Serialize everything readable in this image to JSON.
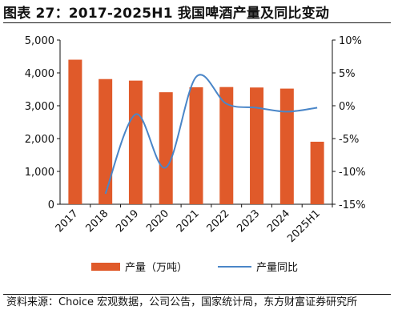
{
  "title": "图表 27：2017-2025H1 我国啤酒产量及同比变动",
  "source": "资料来源：Choice 宏观数据，公司公告，国家统计局，东方财富证券研究所",
  "chart_data": {
    "type": "bar",
    "categories": [
      "2017",
      "2018",
      "2019",
      "2020",
      "2021",
      "2022",
      "2023",
      "2024",
      "2025H1"
    ],
    "series": [
      {
        "name": "产量（万吨）",
        "type": "bar",
        "axis": "left",
        "color": "#e05a2a",
        "values": [
          4402,
          3812,
          3765,
          3411,
          3562,
          3569,
          3555,
          3522,
          1904
        ]
      },
      {
        "name": "产量同比",
        "type": "line",
        "axis": "right",
        "color": "#4a86c8",
        "values": [
          null,
          -13.4,
          -1.3,
          -9.4,
          4.4,
          0.3,
          -0.3,
          -0.9,
          -0.3
        ]
      }
    ],
    "y_left": {
      "ticks": [
        "0",
        "1,000",
        "2,000",
        "3,000",
        "4,000",
        "5,000"
      ],
      "range": [
        0,
        5000
      ]
    },
    "y_right": {
      "ticks": [
        "-15%",
        "-10%",
        "-5%",
        "0%",
        "5%",
        "10%"
      ],
      "range": [
        -15,
        10
      ]
    },
    "legend": "bottom",
    "grid": false
  }
}
